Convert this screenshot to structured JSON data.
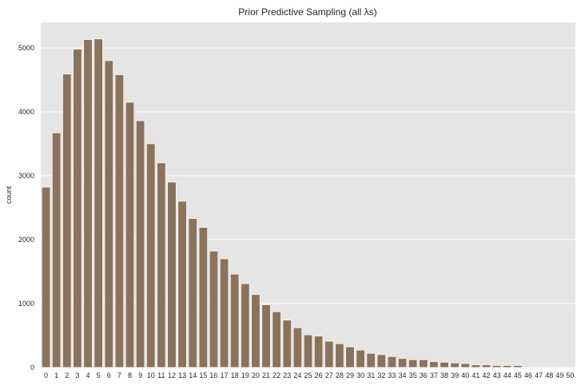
{
  "chart_data": {
    "type": "bar",
    "title": "Prior Predictive Sampling (all λs)",
    "xlabel": "",
    "ylabel": "count",
    "ylim": [
      0,
      5400
    ],
    "yticks": [
      0,
      1000,
      2000,
      3000,
      4000,
      5000
    ],
    "grid": true,
    "colors": {
      "bar": "#8b735b",
      "plot_background": "#e5e5e5",
      "grid": "#ffffff",
      "bar_edge": "#ffffff"
    },
    "categories": [
      "0",
      "1",
      "2",
      "3",
      "4",
      "5",
      "6",
      "7",
      "8",
      "9",
      "10",
      "11",
      "12",
      "13",
      "14",
      "15",
      "16",
      "17",
      "18",
      "19",
      "20",
      "21",
      "22",
      "23",
      "24",
      "25",
      "26",
      "27",
      "28",
      "29",
      "30",
      "31",
      "32",
      "33",
      "34",
      "35",
      "36",
      "37",
      "38",
      "39",
      "40",
      "41",
      "42",
      "43",
      "44",
      "45",
      "46",
      "47",
      "48",
      "49",
      "50"
    ],
    "values": [
      2820,
      3670,
      4590,
      4980,
      5130,
      5140,
      4800,
      4580,
      4150,
      3860,
      3500,
      3200,
      2900,
      2600,
      2330,
      2190,
      1820,
      1700,
      1460,
      1310,
      1140,
      980,
      870,
      740,
      620,
      510,
      490,
      410,
      370,
      320,
      270,
      220,
      200,
      170,
      140,
      120,
      120,
      90,
      80,
      70,
      60,
      40,
      40,
      30,
      30,
      30,
      10,
      10,
      10,
      10,
      10
    ]
  }
}
